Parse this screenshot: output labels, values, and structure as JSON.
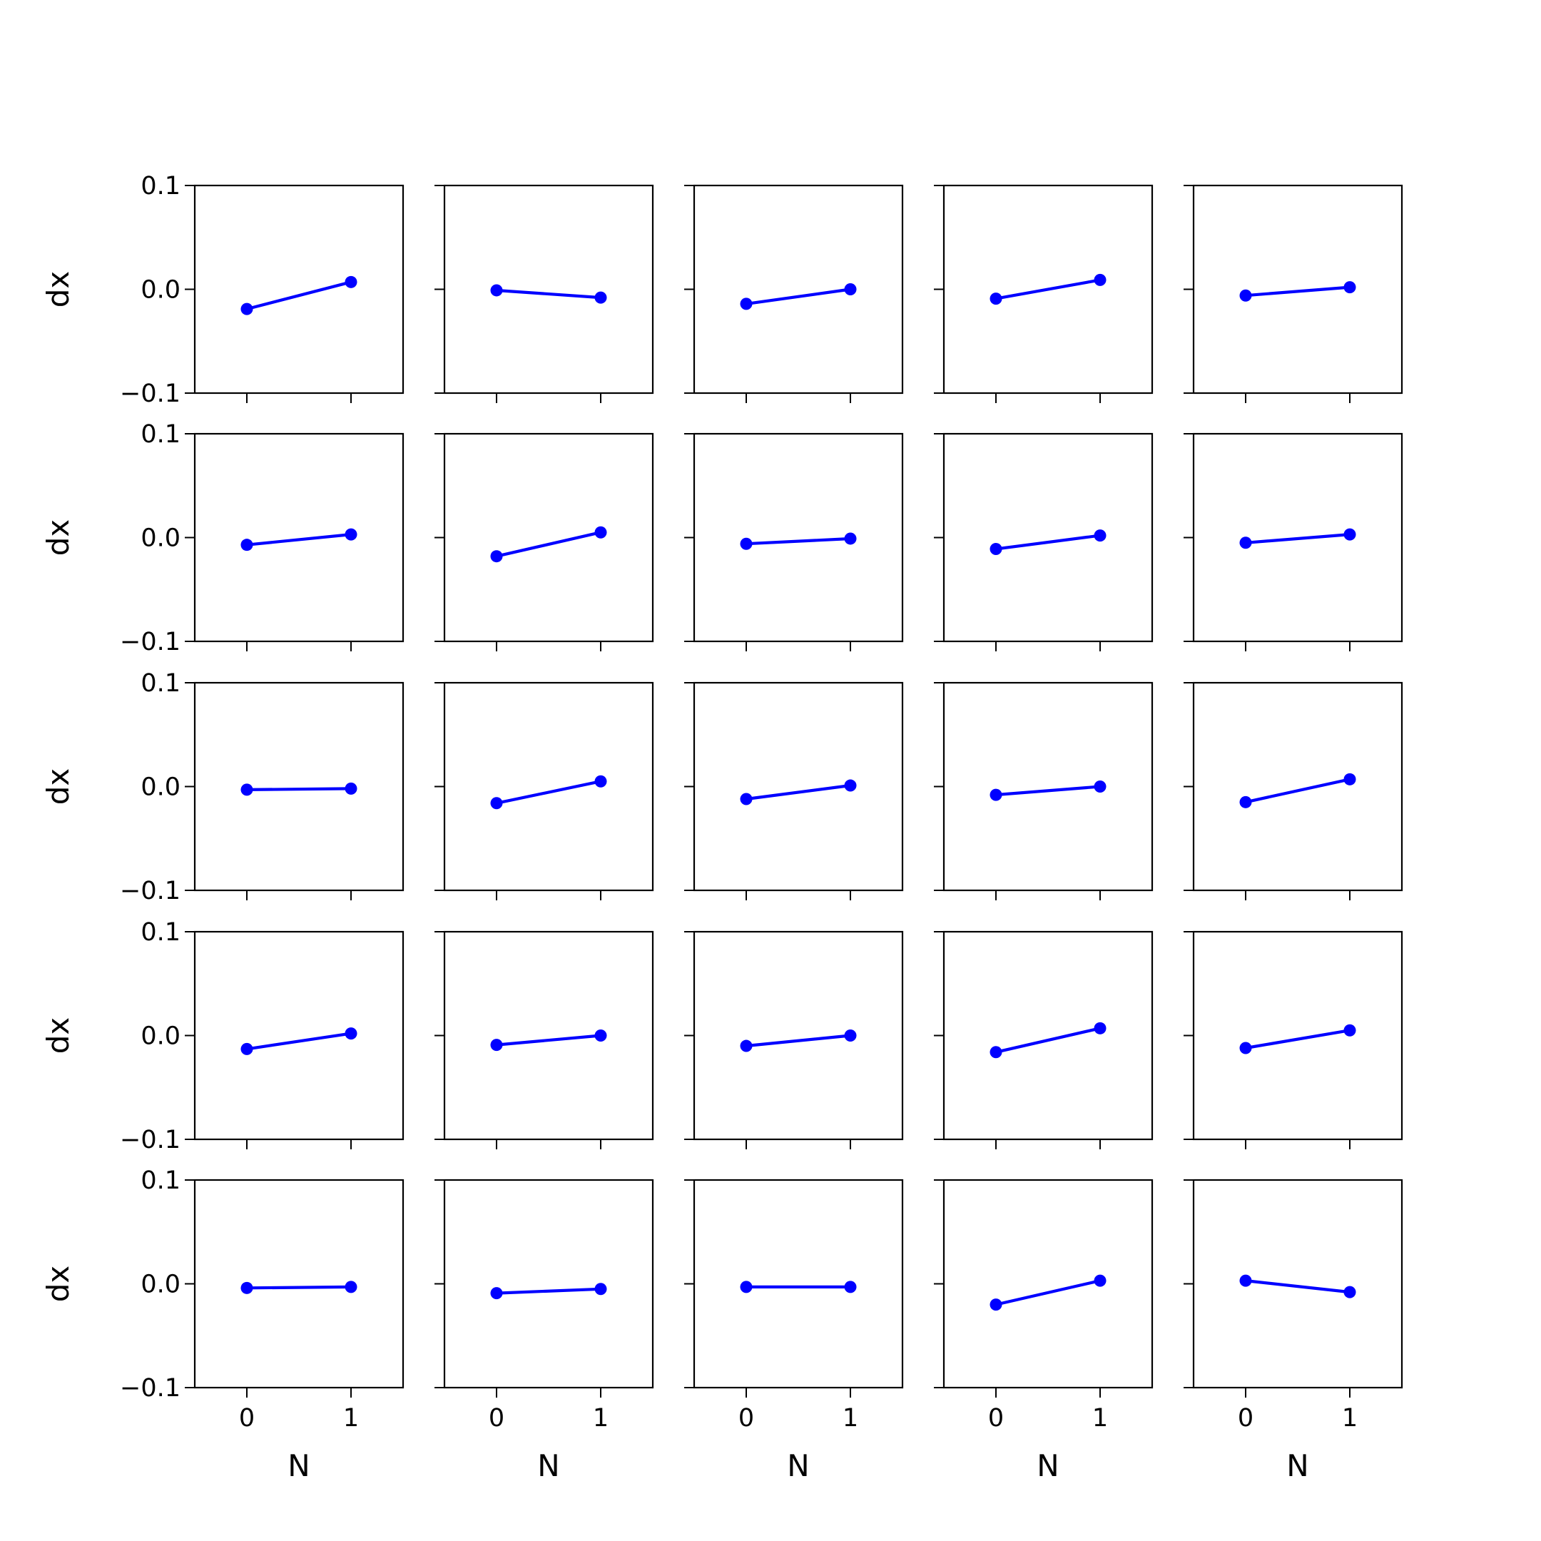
{
  "figure": {
    "line_color": "#0000ff",
    "axes_color": "#000000",
    "background": "#ffffff"
  },
  "chart_data": {
    "type": "line",
    "layout": "grid",
    "rows": 5,
    "cols": 5,
    "xlabel": "N",
    "ylabel": "dx",
    "x": [
      0,
      1
    ],
    "x_tick_labels": [
      "0",
      "1"
    ],
    "y_tick_labels": [
      "0.1",
      "0.0",
      "−0.1"
    ],
    "y_ticks": [
      0.1,
      0.0,
      -0.1
    ],
    "ylim": [
      -0.1,
      0.1
    ],
    "xlim": [
      -0.5,
      1.5
    ],
    "grid": false,
    "sharex": true,
    "sharey": true,
    "panels": [
      {
        "row": 0,
        "col": 0,
        "values": [
          -0.019,
          0.007
        ]
      },
      {
        "row": 0,
        "col": 1,
        "values": [
          -0.001,
          -0.008
        ]
      },
      {
        "row": 0,
        "col": 2,
        "values": [
          -0.014,
          0.0
        ]
      },
      {
        "row": 0,
        "col": 3,
        "values": [
          -0.009,
          0.009
        ]
      },
      {
        "row": 0,
        "col": 4,
        "values": [
          -0.006,
          0.002
        ]
      },
      {
        "row": 1,
        "col": 0,
        "values": [
          -0.007,
          0.003
        ]
      },
      {
        "row": 1,
        "col": 1,
        "values": [
          -0.018,
          0.005
        ]
      },
      {
        "row": 1,
        "col": 2,
        "values": [
          -0.006,
          -0.001
        ]
      },
      {
        "row": 1,
        "col": 3,
        "values": [
          -0.011,
          0.002
        ]
      },
      {
        "row": 1,
        "col": 4,
        "values": [
          -0.005,
          0.003
        ]
      },
      {
        "row": 2,
        "col": 0,
        "values": [
          -0.003,
          -0.002
        ]
      },
      {
        "row": 2,
        "col": 1,
        "values": [
          -0.016,
          0.005
        ]
      },
      {
        "row": 2,
        "col": 2,
        "values": [
          -0.012,
          0.001
        ]
      },
      {
        "row": 2,
        "col": 3,
        "values": [
          -0.008,
          0.0
        ]
      },
      {
        "row": 2,
        "col": 4,
        "values": [
          -0.015,
          0.007
        ]
      },
      {
        "row": 3,
        "col": 0,
        "values": [
          -0.013,
          0.002
        ]
      },
      {
        "row": 3,
        "col": 1,
        "values": [
          -0.009,
          0.0
        ]
      },
      {
        "row": 3,
        "col": 2,
        "values": [
          -0.01,
          0.0
        ]
      },
      {
        "row": 3,
        "col": 3,
        "values": [
          -0.016,
          0.007
        ]
      },
      {
        "row": 3,
        "col": 4,
        "values": [
          -0.012,
          0.005
        ]
      },
      {
        "row": 4,
        "col": 0,
        "values": [
          -0.004,
          -0.003
        ]
      },
      {
        "row": 4,
        "col": 1,
        "values": [
          -0.009,
          -0.005
        ]
      },
      {
        "row": 4,
        "col": 2,
        "values": [
          -0.003,
          -0.003
        ]
      },
      {
        "row": 4,
        "col": 3,
        "values": [
          -0.02,
          0.003
        ]
      },
      {
        "row": 4,
        "col": 4,
        "values": [
          0.003,
          -0.008
        ]
      }
    ]
  }
}
